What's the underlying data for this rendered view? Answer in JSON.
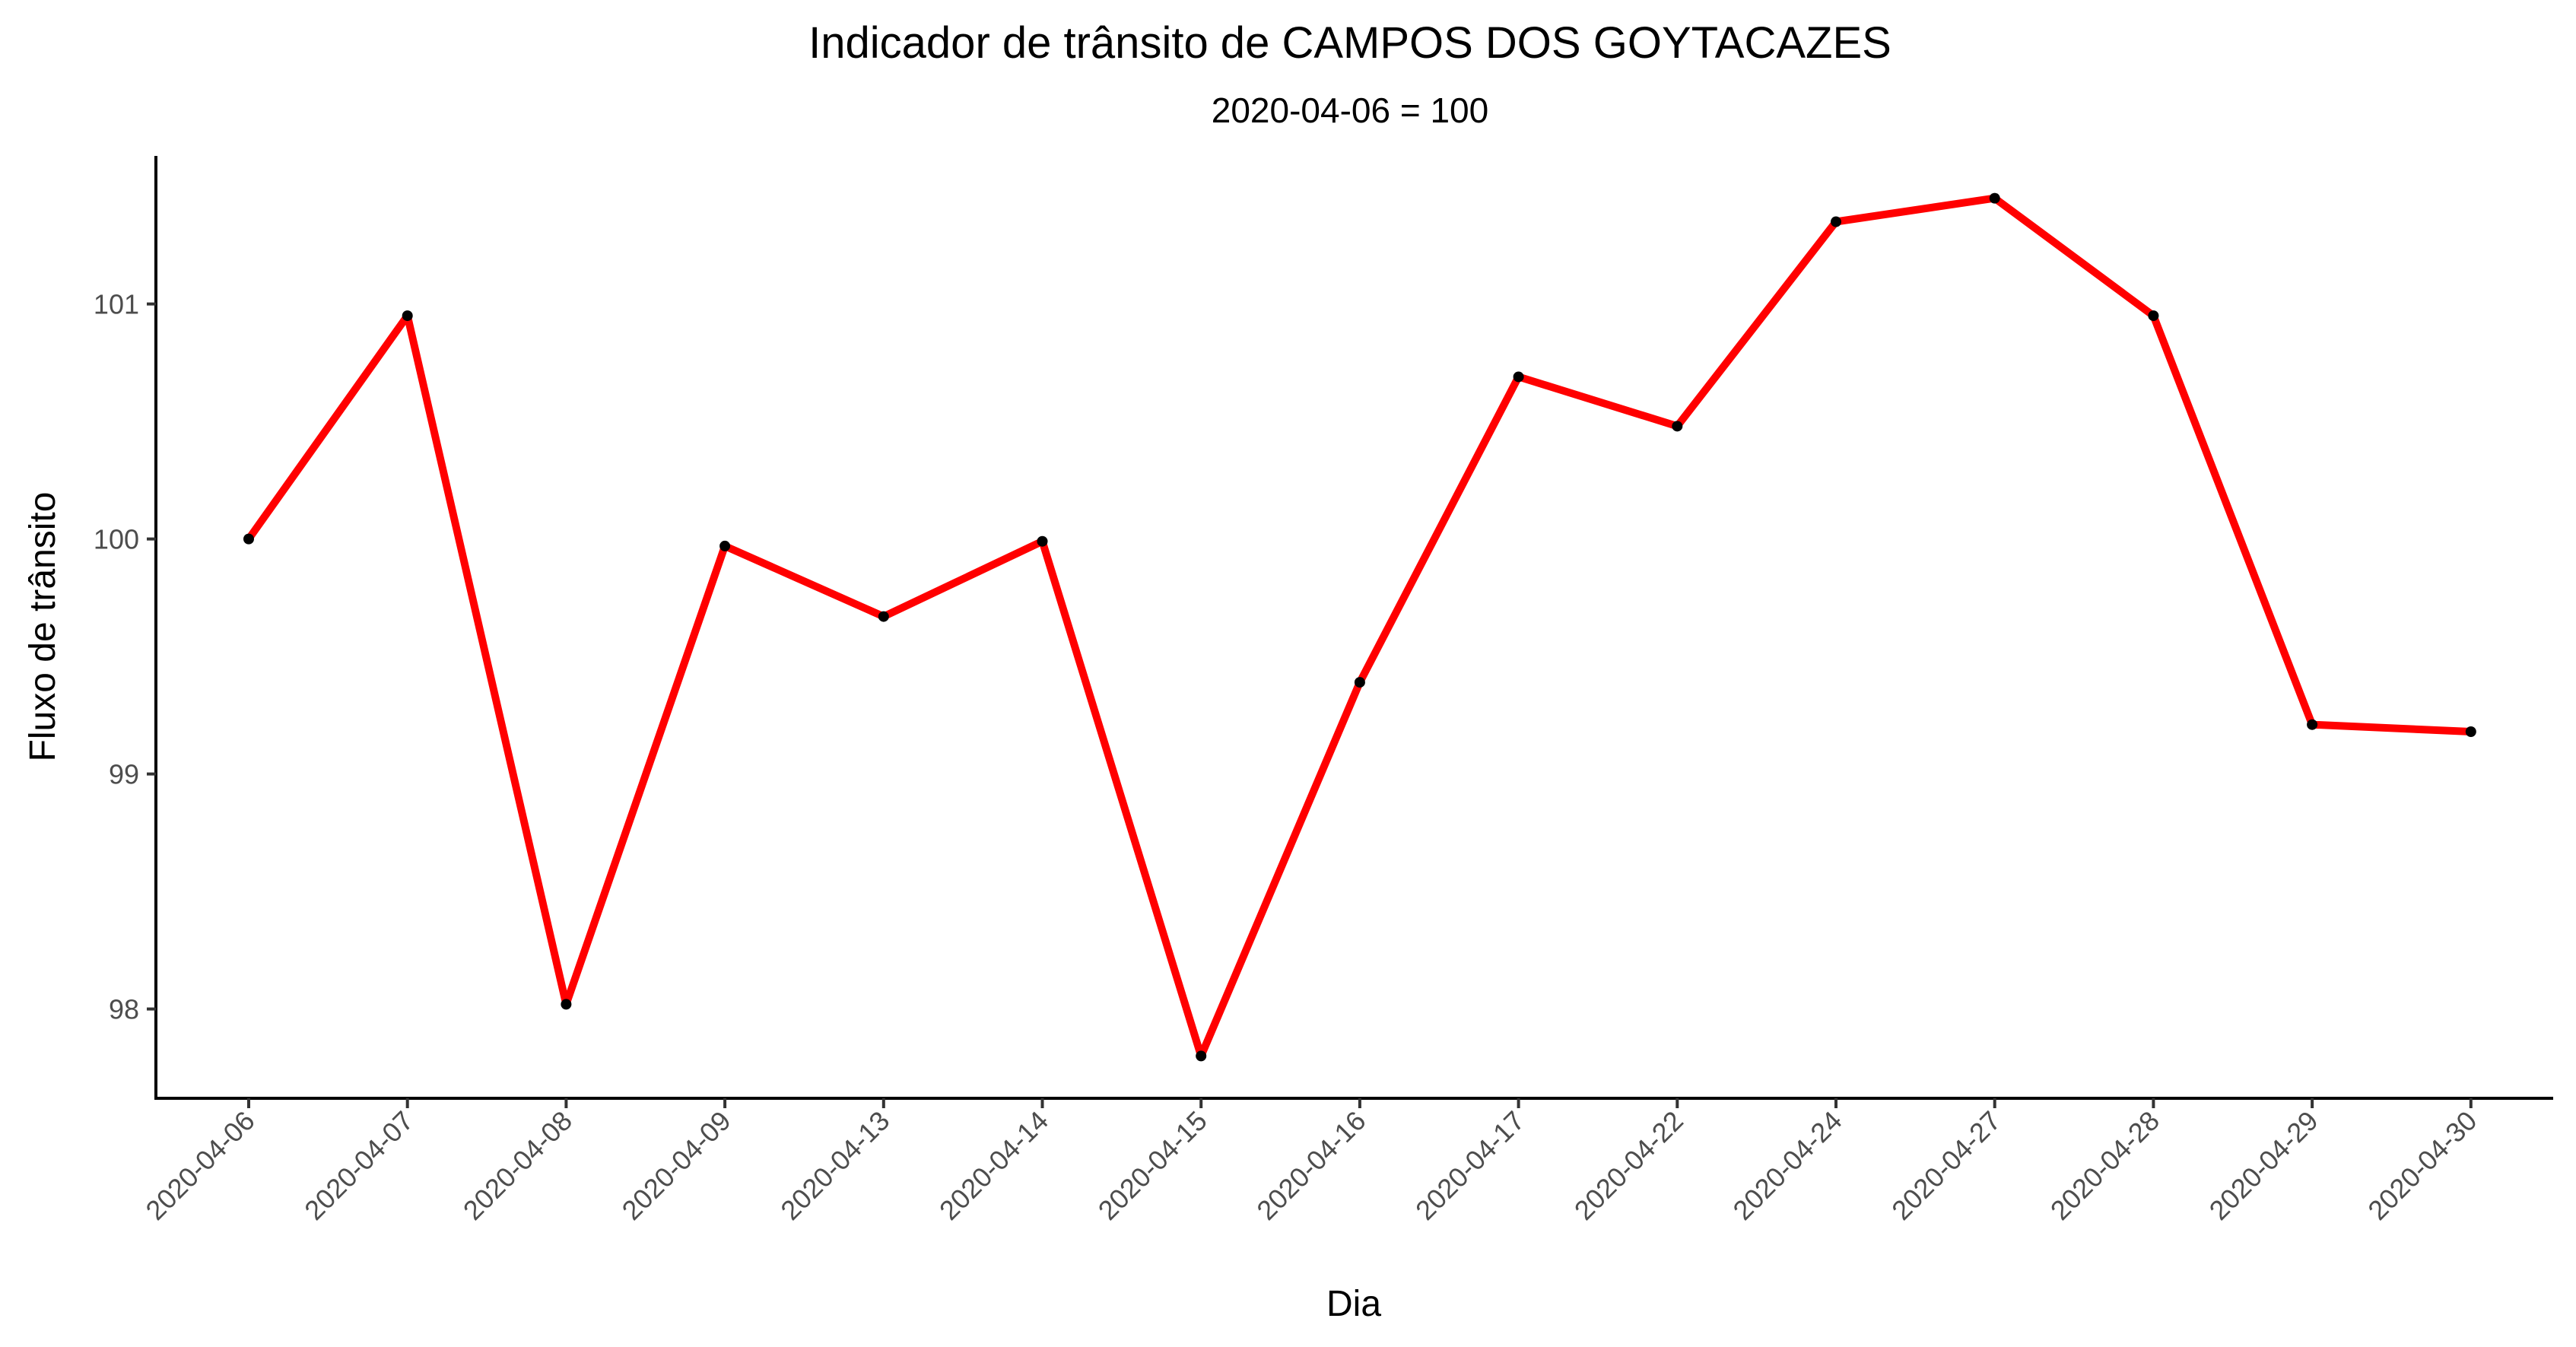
{
  "chart_data": {
    "type": "line",
    "title": "Indicador de trânsito de CAMPOS DOS GOYTACAZES",
    "subtitle": "2020-04-06 = 100",
    "xlabel": "Dia",
    "ylabel": "Fluxo de trânsito",
    "categories": [
      "2020-04-06",
      "2020-04-07",
      "2020-04-08",
      "2020-04-09",
      "2020-04-13",
      "2020-04-14",
      "2020-04-15",
      "2020-04-16",
      "2020-04-17",
      "2020-04-22",
      "2020-04-24",
      "2020-04-27",
      "2020-04-28",
      "2020-04-29",
      "2020-04-30"
    ],
    "series": [
      {
        "values": [
          100.0,
          100.95,
          98.02,
          99.97,
          99.67,
          99.99,
          97.8,
          99.39,
          100.69,
          100.48,
          101.35,
          101.45,
          100.95,
          99.21,
          99.18
        ],
        "color": "#ff0000",
        "point_color": "#000000"
      }
    ],
    "ylim": [
      97.62,
      101.63
    ],
    "yticks": [
      98,
      99,
      100,
      101
    ],
    "grid": false,
    "legend": "none"
  }
}
